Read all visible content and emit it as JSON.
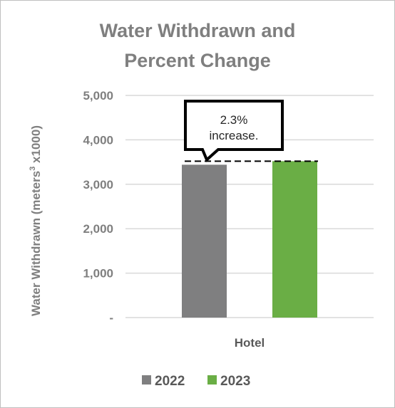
{
  "chart_data": {
    "type": "bar",
    "title_lines": [
      "Water Withdrawn and",
      "Percent Change"
    ],
    "ylabel": {
      "prefix": "Water Withdrawn  (meters",
      "superscript": "3",
      "suffix": " x1000)"
    },
    "xlabel": "",
    "ylim": [
      0,
      5000
    ],
    "ytick_labels": [
      "-",
      "1,000",
      "2,000",
      "3,000",
      "4,000",
      "5,000"
    ],
    "ytick_values": [
      0,
      1000,
      2000,
      3000,
      4000,
      5000
    ],
    "grid": true,
    "categories": [
      "Hotel"
    ],
    "series": [
      {
        "name": "2022",
        "values": [
          3440
        ],
        "color": "#7f7f80"
      },
      {
        "name": "2023",
        "values": [
          3520
        ],
        "color": "#6aae45"
      }
    ],
    "reference_line": {
      "value": 3520,
      "style": "dashed",
      "color": "#000000"
    },
    "annotation": {
      "lines": [
        "2.3%",
        "increase."
      ]
    },
    "legend_placement": "bottom"
  }
}
